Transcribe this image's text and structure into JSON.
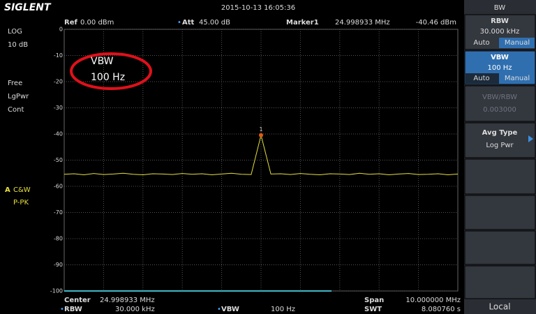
{
  "top_bar": {
    "logo": "SIGLENT",
    "datetime": "2015-10-13  16:05:36"
  },
  "header": {
    "ref_label": "Ref",
    "ref_value": "0.00 dBm",
    "att_label": "Att",
    "att_value": "45.00 dB",
    "marker_label": "Marker1",
    "marker_freq": "24.998933  MHz",
    "marker_level": "-40.46 dBm"
  },
  "left_status": {
    "scale": "LOG",
    "scale_div": "10 dB",
    "items": [
      "Free",
      "LgPwr",
      "Cont"
    ],
    "trace_mode": "A",
    "trace_type": "C&W",
    "detector": "P-PK"
  },
  "annotation": {
    "line1": "VBW",
    "line2": "100   Hz"
  },
  "plot": {
    "ylim": [
      -100,
      0
    ],
    "yticks": [
      0,
      -10,
      -20,
      -30,
      -40,
      -50,
      -60,
      -70,
      -80,
      -90,
      -100
    ],
    "marker_number": "1",
    "trace": {
      "color": "#e6e03c",
      "values": [
        -55.4,
        -55.2,
        -55.6,
        -55.1,
        -55.5,
        -55.3,
        -55.0,
        -55.4,
        -55.6,
        -55.2,
        -55.3,
        -55.5,
        -55.1,
        -55.4,
        -55.2,
        -55.6,
        -55.3,
        -55.0,
        -55.4,
        -55.5,
        -40.46,
        -55.3,
        -55.2,
        -55.5,
        -55.1,
        -55.4,
        -55.6,
        -55.2,
        -55.3,
        -55.5,
        -55.0,
        -55.4,
        -55.2,
        -55.6,
        -55.3,
        -55.1,
        -55.5,
        -55.4,
        -55.2,
        -55.6,
        -55.3
      ]
    }
  },
  "footer": {
    "center_label": "Center",
    "center_value": "24.998933  MHz",
    "span_label": "Span",
    "span_value": "10.000000  MHz",
    "rbw_label": "RBW",
    "rbw_value": "30.000  kHz",
    "vbw_label": "VBW",
    "vbw_value": "100    Hz",
    "swt_label": "SWT",
    "swt_value": "8.080760  s"
  },
  "menu": {
    "title": "BW",
    "rbw": {
      "label": "RBW",
      "value": "30.000  kHz",
      "auto": "Auto",
      "manual": "Manual"
    },
    "vbw": {
      "label": "VBW",
      "value": "100   Hz",
      "auto": "Auto",
      "manual": "Manual"
    },
    "ratio": {
      "label": "VBW/RBW",
      "value": "0.003000"
    },
    "avg": {
      "label": "Avg Type",
      "value": "Log Pwr"
    },
    "local": "Local"
  }
}
